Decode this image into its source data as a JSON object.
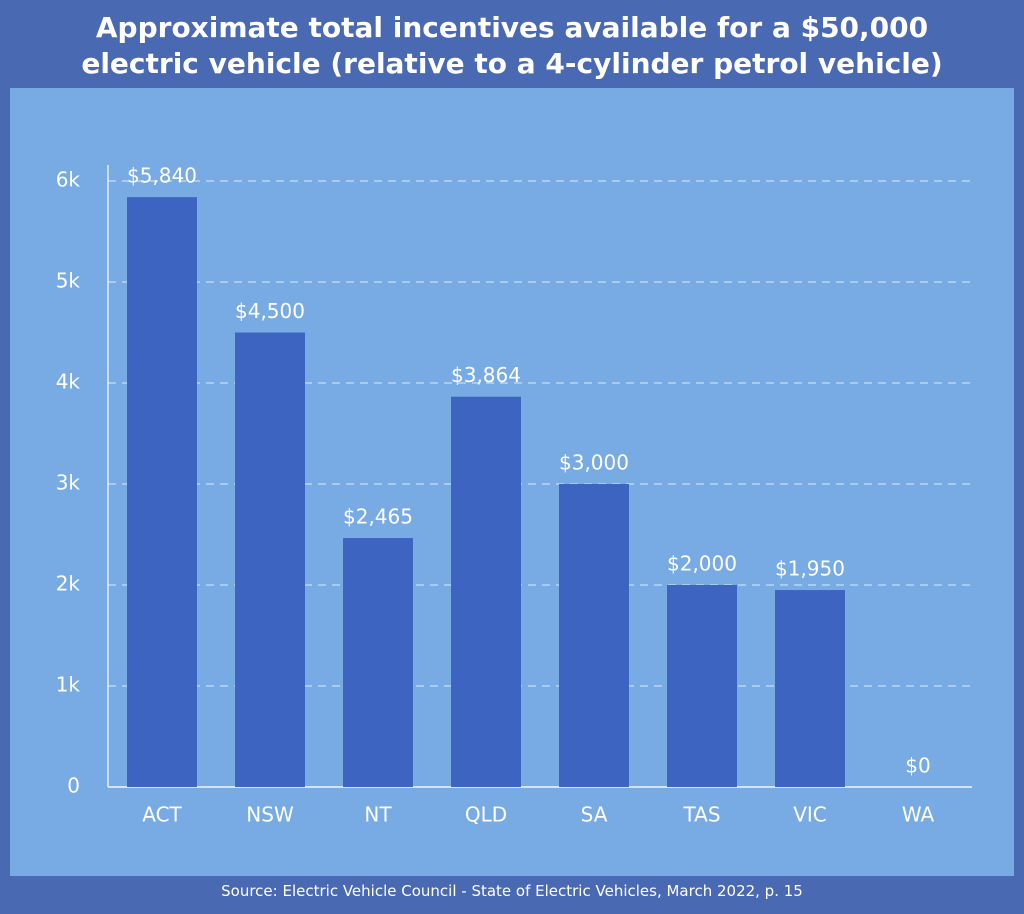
{
  "chart_data": {
    "type": "bar",
    "title": "Approximate total incentives available for a $50,000 electric vehicle (relative to a 4-cylinder petrol vehicle)",
    "categories": [
      "ACT",
      "NSW",
      "NT",
      "QLD",
      "SA",
      "TAS",
      "VIC",
      "WA"
    ],
    "values": [
      5840,
      4500,
      2465,
      3864,
      3000,
      2000,
      1950,
      0
    ],
    "value_labels": [
      "$5,840",
      "$4,500",
      "$2,465",
      "$3,864",
      "$3,000",
      "$2,000",
      "$1,950",
      "$0"
    ],
    "color": "#3e64c1",
    "ylim": [
      0,
      6000
    ],
    "yticks": [
      0,
      {
        "value": 1000,
        "label": "1k"
      },
      {
        "value": 2000,
        "label": "2k"
      },
      {
        "value": 3000,
        "label": "3k"
      },
      {
        "value": 4000,
        "label": "4k"
      },
      {
        "value": 5000,
        "label": "5k"
      },
      {
        "value": 6000,
        "label": "6k"
      }
    ],
    "grid": true,
    "source": "Source: Electric Vehicle Council - State of Electric Vehicles, March 2022, p. 15"
  }
}
